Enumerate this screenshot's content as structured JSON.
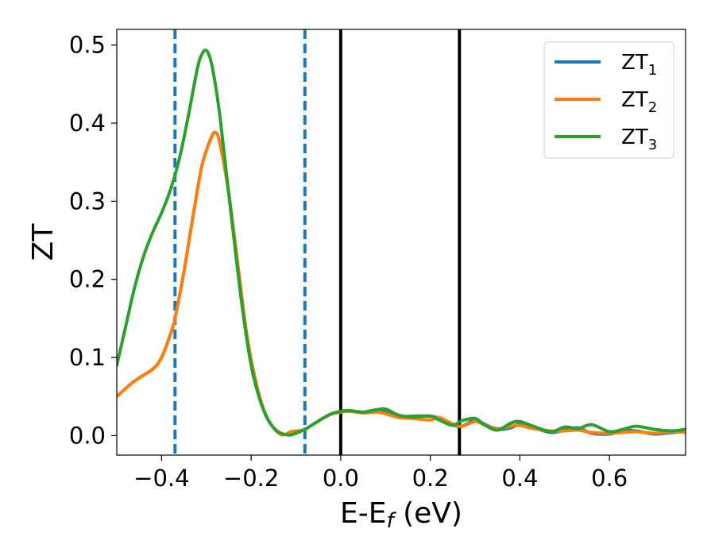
{
  "chart_data": {
    "type": "line",
    "title": "",
    "xlabel": "E-E",
    "xlabel_sub": "f",
    "xlabel_unit": " (eV)",
    "ylabel": "ZT",
    "xlim": [
      -0.5,
      0.77
    ],
    "ylim": [
      -0.025,
      0.52
    ],
    "xticks": [
      -0.4,
      -0.2,
      0.0,
      0.2,
      0.4,
      0.6
    ],
    "xtick_labels": [
      "−0.4",
      "−0.2",
      "0.0",
      "0.2",
      "0.4",
      "0.6"
    ],
    "yticks": [
      0.0,
      0.1,
      0.2,
      0.3,
      0.4,
      0.5
    ],
    "ytick_labels": [
      "0.0",
      "0.1",
      "0.2",
      "0.3",
      "0.4",
      "0.5"
    ],
    "grid": false,
    "legend_position": "top-right",
    "vlines": [
      {
        "x": -0.37,
        "style": "dashed",
        "color": "#1f77b4"
      },
      {
        "x": -0.08,
        "style": "dashed",
        "color": "#1f77b4"
      },
      {
        "x": 0.0,
        "style": "solid",
        "color": "#000000"
      },
      {
        "x": 0.265,
        "style": "solid",
        "color": "#000000"
      }
    ],
    "series": [
      {
        "name": "ZT",
        "name_sub": "1",
        "color": "#1f77b4",
        "x": [
          -0.5,
          -0.46,
          -0.42,
          -0.4,
          -0.38,
          -0.37,
          -0.35,
          -0.33,
          -0.31,
          -0.29,
          -0.28,
          -0.27,
          -0.25,
          -0.23,
          -0.21,
          -0.19,
          -0.17,
          -0.15,
          -0.13,
          -0.11,
          -0.095,
          -0.08,
          -0.06,
          -0.04,
          -0.02,
          0.0,
          0.02,
          0.05,
          0.08,
          0.1,
          0.13,
          0.16,
          0.2,
          0.22,
          0.25,
          0.27,
          0.3,
          0.32,
          0.35,
          0.38,
          0.4,
          0.43,
          0.47,
          0.5,
          0.53,
          0.56,
          0.6,
          0.63,
          0.66,
          0.7,
          0.74,
          0.77
        ],
        "y": [
          0.05,
          0.07,
          0.085,
          0.1,
          0.13,
          0.15,
          0.21,
          0.28,
          0.345,
          0.38,
          0.388,
          0.375,
          0.31,
          0.22,
          0.13,
          0.07,
          0.03,
          0.01,
          0.001,
          0.005,
          0.006,
          0.008,
          0.015,
          0.022,
          0.028,
          0.031,
          0.032,
          0.03,
          0.033,
          0.03,
          0.024,
          0.025,
          0.025,
          0.022,
          0.014,
          0.012,
          0.02,
          0.015,
          0.008,
          0.01,
          0.015,
          0.01,
          0.004,
          0.007,
          0.01,
          0.003,
          0.002,
          0.006,
          0.006,
          0.002,
          0.004,
          0.005
        ]
      },
      {
        "name": "ZT",
        "name_sub": "2",
        "color": "#ff7f0e",
        "x": [
          -0.5,
          -0.46,
          -0.42,
          -0.4,
          -0.38,
          -0.37,
          -0.35,
          -0.33,
          -0.31,
          -0.29,
          -0.28,
          -0.27,
          -0.25,
          -0.23,
          -0.21,
          -0.19,
          -0.17,
          -0.15,
          -0.13,
          -0.11,
          -0.095,
          -0.08,
          -0.06,
          -0.04,
          -0.02,
          0.0,
          0.02,
          0.05,
          0.08,
          0.1,
          0.13,
          0.16,
          0.2,
          0.22,
          0.25,
          0.27,
          0.3,
          0.32,
          0.35,
          0.38,
          0.4,
          0.43,
          0.47,
          0.5,
          0.53,
          0.56,
          0.6,
          0.63,
          0.66,
          0.7,
          0.74,
          0.77
        ],
        "y": [
          0.05,
          0.07,
          0.085,
          0.1,
          0.13,
          0.15,
          0.21,
          0.28,
          0.345,
          0.38,
          0.388,
          0.375,
          0.31,
          0.22,
          0.13,
          0.07,
          0.03,
          0.01,
          0.001,
          0.005,
          0.006,
          0.008,
          0.015,
          0.022,
          0.028,
          0.03,
          0.031,
          0.029,
          0.03,
          0.028,
          0.023,
          0.022,
          0.02,
          0.023,
          0.015,
          0.012,
          0.018,
          0.014,
          0.009,
          0.012,
          0.013,
          0.009,
          0.006,
          0.006,
          0.007,
          0.004,
          0.003,
          0.004,
          0.005,
          0.003,
          0.005,
          0.004
        ]
      },
      {
        "name": "ZT",
        "name_sub": "3",
        "color": "#2ca02c",
        "x": [
          -0.5,
          -0.48,
          -0.46,
          -0.44,
          -0.42,
          -0.4,
          -0.38,
          -0.36,
          -0.34,
          -0.32,
          -0.31,
          -0.3,
          -0.29,
          -0.28,
          -0.27,
          -0.26,
          -0.24,
          -0.22,
          -0.2,
          -0.18,
          -0.16,
          -0.14,
          -0.12,
          -0.11,
          -0.1,
          -0.08,
          -0.06,
          -0.04,
          -0.02,
          0.0,
          0.02,
          0.05,
          0.08,
          0.1,
          0.13,
          0.16,
          0.2,
          0.22,
          0.25,
          0.27,
          0.3,
          0.32,
          0.35,
          0.38,
          0.4,
          0.43,
          0.47,
          0.5,
          0.53,
          0.56,
          0.6,
          0.63,
          0.66,
          0.7,
          0.74,
          0.77
        ],
        "y": [
          0.09,
          0.14,
          0.19,
          0.23,
          0.26,
          0.285,
          0.315,
          0.355,
          0.41,
          0.47,
          0.488,
          0.493,
          0.48,
          0.45,
          0.41,
          0.36,
          0.26,
          0.165,
          0.09,
          0.045,
          0.018,
          0.005,
          0.001,
          0.001,
          0.003,
          0.008,
          0.015,
          0.022,
          0.028,
          0.031,
          0.032,
          0.03,
          0.033,
          0.034,
          0.026,
          0.024,
          0.025,
          0.02,
          0.013,
          0.019,
          0.022,
          0.014,
          0.007,
          0.016,
          0.018,
          0.012,
          0.005,
          0.011,
          0.009,
          0.014,
          0.005,
          0.008,
          0.012,
          0.008,
          0.006,
          0.008
        ]
      }
    ]
  }
}
